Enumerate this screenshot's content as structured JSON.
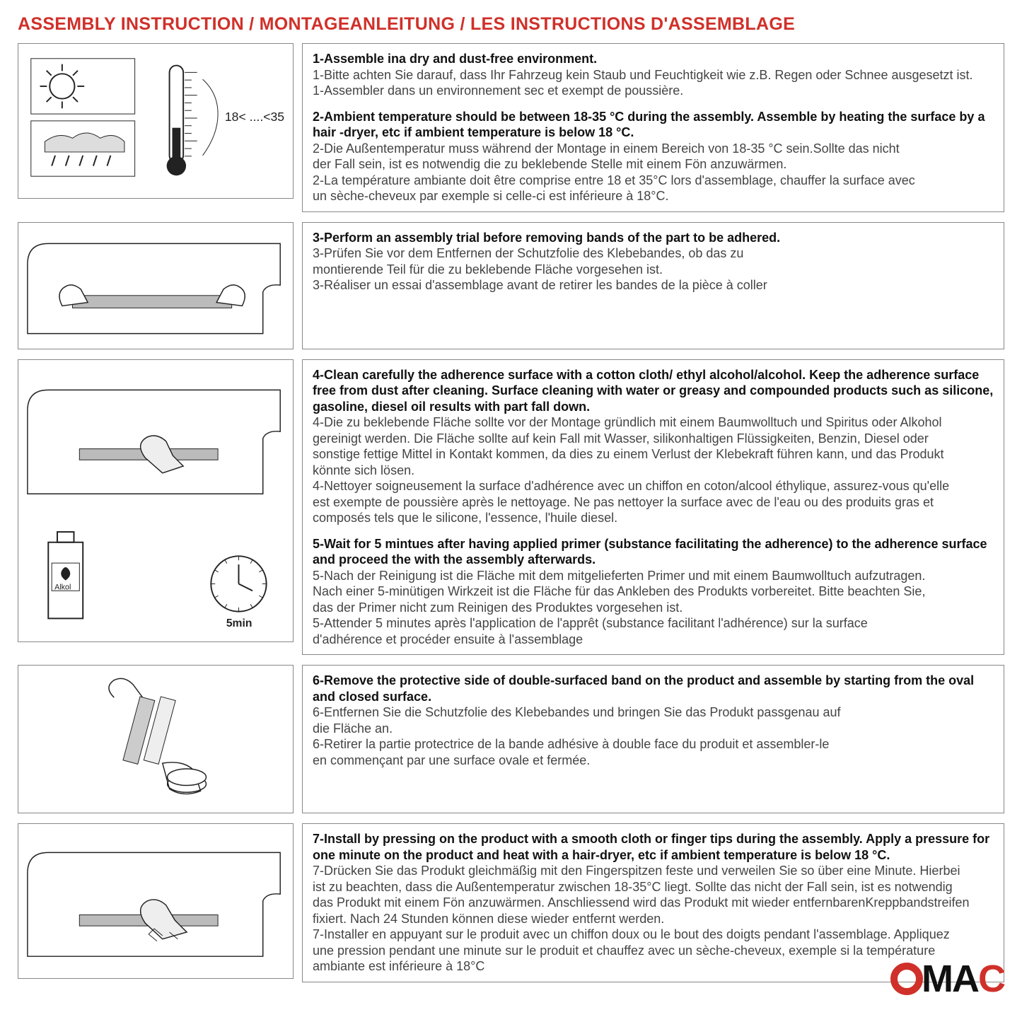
{
  "title": "ASSEMBLY INSTRUCTION / MONTAGEANLEITUNG / LES INSTRUCTIONS D'ASSEMBLAGE",
  "colors": {
    "accent": "#d0302a",
    "border": "#888888",
    "text_bold": "#111111",
    "text_normal": "#444444",
    "background": "#ffffff"
  },
  "panels": [
    {
      "illustration": "temp-sun-rain",
      "illustration_label": "18< ....<35 C",
      "blocks": [
        {
          "bold": "1-Assemble ina dry and dust-free environment.",
          "lines": [
            "1-Bitte achten Sie darauf, dass Ihr Fahrzeug kein Staub und Feuchtigkeit wie z.B. Regen oder Schnee ausgesetzt ist.",
            "1-Assembler dans un environnement sec et exempt de poussière."
          ]
        },
        {
          "bold": "2-Ambient temperature should be between 18-35 °C  during the assembly. Assemble by heating the surface by a hair -dryer, etc if ambient temperature is below 18 °C.",
          "lines": [
            "2-Die Außentemperatur muss während der Montage in einem Bereich von 18-35 °C  sein.Sollte das nicht",
            "der Fall sein, ist es notwendig die zu beklebende Stelle mit einem Fön anzuwärmen.",
            "2-La température ambiante doit être comprise entre 18 et 35°C lors d'assemblage, chauffer la surface avec",
            " un sèche-cheveux par exemple si celle-ci est inférieure à 18°C."
          ]
        }
      ]
    },
    {
      "illustration": "trial-fit",
      "big": true,
      "blocks": [
        {
          "bold": "3-Perform an assembly trial before removing bands of the part to be adhered.",
          "lines": [
            "3-Prüfen Sie vor dem Entfernen der Schutzfolie des Klebebandes, ob das zu",
            "montierende Teil für die zu beklebende Fläche vorgesehen ist.",
            "3-Réaliser un essai d'assemblage avant de retirer les bandes de la pièce à coller"
          ]
        }
      ]
    },
    {
      "illustration": "clean-alcohol",
      "illustration_label": "5min",
      "illustration_label2": "Alkol",
      "blocks": [
        {
          "bold": "4-Clean carefully the adherence surface with a cotton cloth/ ethyl alcohol/alcohol. Keep the adherence surface free from dust after cleaning. Surface cleaning with water or greasy and compounded products such as silicone, gasoline, diesel oil results with part fall down.",
          "lines": [
            "4-Die zu beklebende Fläche sollte vor der Montage gründlich mit einem Baumwolltuch und Spiritus oder Alkohol",
            "gereinigt werden. Die Fläche sollte auf kein Fall mit Wasser, silikonhaltigen Flüssigkeiten, Benzin, Diesel oder",
            "sonstige fettige Mittel in Kontakt kommen, da dies zu einem Verlust der Klebekraft führen kann, und das Produkt",
            "könnte sich lösen.",
            "4-Nettoyer soigneusement la surface d'adhérence avec un chiffon en coton/alcool éthylique, assurez-vous qu'elle",
            "est exempte de poussière après le nettoyage. Ne pas nettoyer la surface avec de l'eau ou des produits gras et",
            "composés tels que le silicone, l'essence, l'huile diesel."
          ]
        },
        {
          "bold": "5-Wait for 5 mintues after having applied primer (substance facilitating the adherence) to the adherence surface and proceed the with the assembly afterwards.",
          "lines": [
            "5-Nach der Reinigung ist die Fläche mit dem mitgelieferten Primer und mit einem Baumwolltuch aufzutragen.",
            "Nach einer 5-minütigen Wirkzeit ist die Fläche für das Ankleben des Produkts vorbereitet. Bitte beachten Sie,",
            "das der Primer nicht zum Reinigen des Produktes vorgesehen ist.",
            "5-Attender 5 minutes après l'application de l'apprêt (substance facilitant l'adhérence) sur la surface",
            "d'adhérence et procéder ensuite à l'assemblage"
          ]
        }
      ]
    },
    {
      "illustration": "peel-tape",
      "big": true,
      "blocks": [
        {
          "bold": "6-Remove the protective side of double-surfaced band on the product and assemble by starting from the oval and closed surface.",
          "lines": [
            "6-Entfernen Sie die Schutzfolie des Klebebandes und bringen Sie das Produkt passgenau auf",
            "die Fläche an.",
            "6-Retirer la partie protectrice de la bande adhésive à double face du produit et assembler-le",
            "en commençant par une surface ovale et fermée."
          ]
        }
      ]
    },
    {
      "illustration": "press-install",
      "blocks": [
        {
          "bold": "7-Install by pressing on the product with a smooth cloth or finger tips during the assembly. Apply a pressure for one minute on the product and heat with a hair-dryer, etc if ambient temperature is below 18 °C.",
          "lines": [
            "7-Drücken Sie das Produkt gleichmäßig mit den Fingerspitzen feste und verweilen Sie so über eine Minute. Hierbei",
            "ist zu beachten, dass die Außentemperatur zwischen 18-35°C liegt. Sollte das nicht der Fall sein, ist es notwendig",
            "das Produkt mit einem Fön anzuwärmen. Anschliessend wird das Produkt mit wieder entfernbarenKreppbandstreifen",
            "fixiert. Nach 24 Stunden können diese wieder entfernt werden.",
            "7-Installer en appuyant sur le produit avec un chiffon doux ou le bout des doigts pendant l'assemblage. Appliquez",
            " une pression pendant une minute sur le produit et chauffez avec un sèche-cheveux, exemple si la température",
            "ambiante est inférieure à 18°C"
          ]
        }
      ]
    }
  ],
  "logo": {
    "text": "OMAC",
    "o_color": "#d0302a",
    "c_color": "#d0302a",
    "ma_color": "#111111"
  }
}
